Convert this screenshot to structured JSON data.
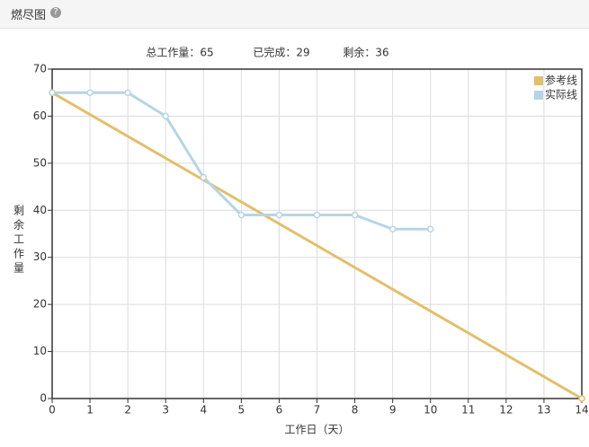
{
  "header": {
    "title": "燃尽图"
  },
  "chart_data": {
    "type": "line",
    "summary": [
      "总工作量：65",
      "已完成：29",
      "剩余：36"
    ],
    "xlabel": "工作日（天）",
    "ylabel": "剩余工作量",
    "xlim": [
      0,
      14
    ],
    "xticks": [
      0,
      1,
      2,
      3,
      4,
      5,
      6,
      7,
      8,
      9,
      10,
      11,
      12,
      13,
      14
    ],
    "ylim": [
      0,
      70
    ],
    "yticks": [
      0,
      10,
      20,
      30,
      40,
      50,
      60,
      70
    ],
    "grid": true,
    "legend": "top-right",
    "series": [
      {
        "name": "参考线",
        "color": "#e3bf6a",
        "x": [
          0,
          14
        ],
        "values": [
          65,
          0
        ]
      },
      {
        "name": "实际线",
        "color": "#b5d5e6",
        "x": [
          0,
          1,
          2,
          3,
          4,
          5,
          6,
          7,
          8,
          9,
          10
        ],
        "values": [
          65,
          65,
          65,
          60,
          47,
          39,
          39,
          39,
          39,
          36,
          36
        ]
      }
    ]
  }
}
